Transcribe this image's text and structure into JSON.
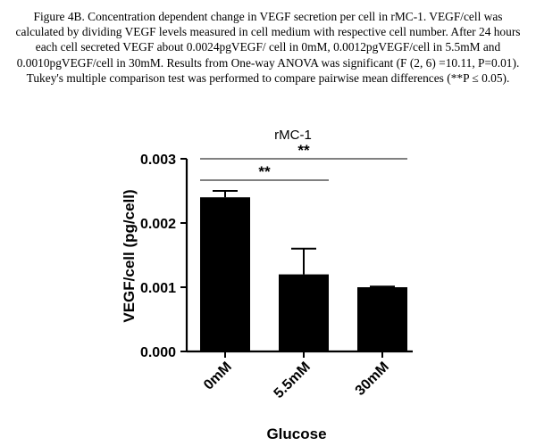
{
  "caption": "Figure  4B. Concentration dependent change in VEGF secretion per cell in rMC-1. VEGF/cell was calculated by dividing VEGF levels measured in cell medium with respective cell number. After 24 hours each cell secreted VEGF about 0.0024pgVEGF/ cell in 0mM, 0.0012pgVEGF/cell in 5.5mM and 0.0010pgVEGF/cell in 30mM. Results from One-way ANOVA was significant (F (2, 6) =10.11, P=0.01). Tukey's multiple comparison test was performed to compare pairwise mean differences (**P ≤ 0.05).",
  "chart_data": {
    "type": "bar",
    "title": "rMC-1",
    "xlabel": "Glucose",
    "ylabel": "VEGF/cell (pg/cell)",
    "categories": [
      "0mM",
      "5.5mM",
      "30mM"
    ],
    "values": [
      0.0024,
      0.0012,
      0.001
    ],
    "error_upper": [
      0.0025,
      0.0016,
      0.00101
    ],
    "ylim": [
      0,
      0.003
    ],
    "yticks": [
      "0.000",
      "0.001",
      "0.002",
      "0.003"
    ],
    "grid": false,
    "significance": [
      {
        "from": 0,
        "to": 1,
        "label": "**"
      },
      {
        "from": 0,
        "to": 2,
        "label": "**"
      }
    ],
    "colors": {
      "bar": "#000000",
      "axis": "#000000"
    }
  }
}
